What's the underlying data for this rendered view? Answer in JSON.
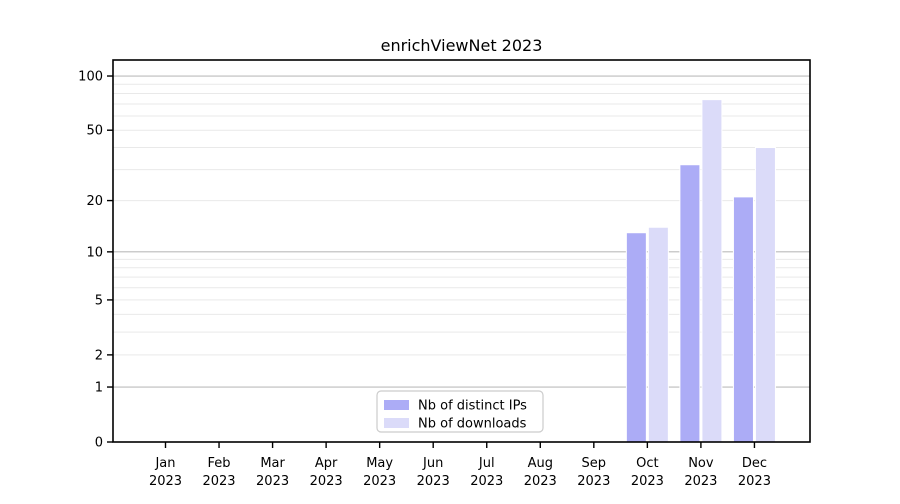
{
  "chart_data": {
    "type": "bar",
    "title": "enrichViewNet 2023",
    "categories": [
      "Jan",
      "Feb",
      "Mar",
      "Apr",
      "May",
      "Jun",
      "Jul",
      "Aug",
      "Sep",
      "Oct",
      "Nov",
      "Dec"
    ],
    "year_label": "2023",
    "series": [
      {
        "name": "Nb of distinct IPs",
        "color": "#acacf6",
        "values": [
          0,
          0,
          0,
          0,
          0,
          0,
          0,
          0,
          0,
          13,
          32,
          21
        ]
      },
      {
        "name": "Nb of downloads",
        "color": "#dbdbf9",
        "values": [
          0,
          0,
          0,
          0,
          0,
          0,
          0,
          0,
          0,
          14,
          74,
          40
        ]
      }
    ],
    "yscale": "log1p",
    "ytick_labels": [
      "0",
      "1",
      "2",
      "5",
      "10",
      "20",
      "50",
      "100"
    ],
    "ytick_values": [
      0,
      1,
      2,
      5,
      10,
      20,
      50,
      100
    ],
    "minor_grid_values": [
      2,
      3,
      4,
      5,
      6,
      7,
      8,
      9,
      20,
      30,
      40,
      50,
      60,
      70,
      80,
      90
    ],
    "major_grid_values": [
      1,
      10,
      100
    ],
    "ylim": [
      0,
      122
    ],
    "grid": true,
    "legend_position": "bottom-center"
  },
  "colors": {
    "background": "#ffffff",
    "spine": "#000000",
    "major_grid": "#bcbcbc",
    "minor_grid": "#e9e9e9",
    "tick_text": "#000000",
    "legend_border": "#cccccc",
    "legend_bg": "#ffffff",
    "bar_edge": "#ffffff"
  }
}
